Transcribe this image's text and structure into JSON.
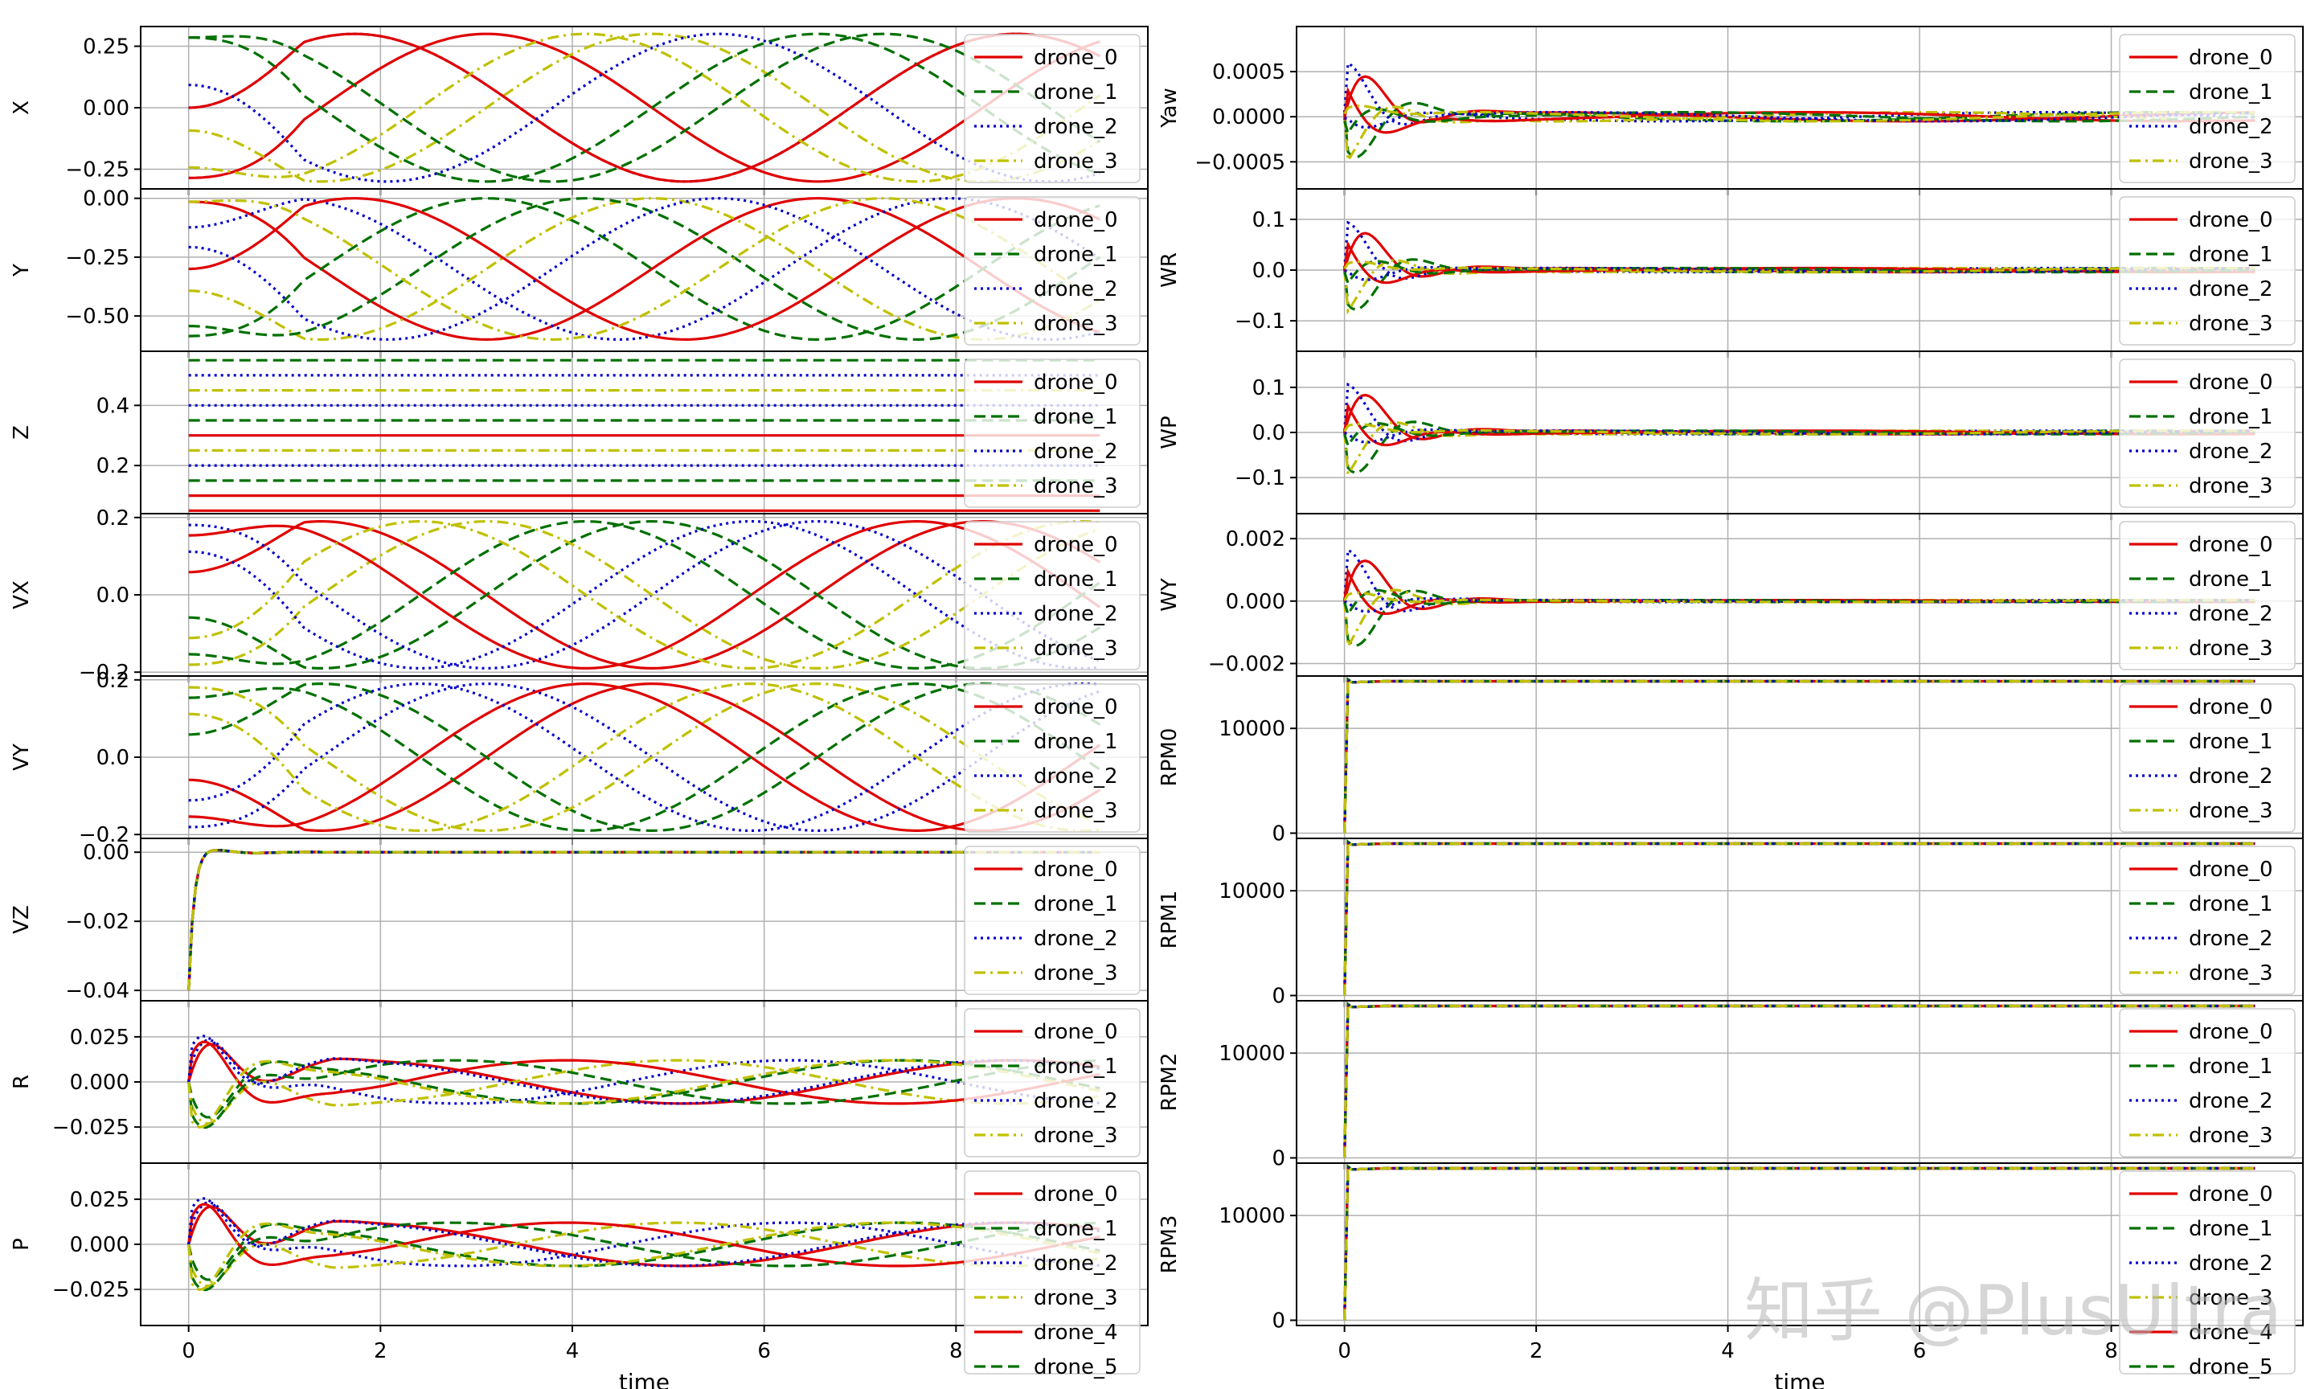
{
  "watermark": "知乎 @PlusUltra",
  "legend": [
    {
      "label": "drone_0",
      "color": "#e00000",
      "dash": "solid"
    },
    {
      "label": "drone_1",
      "color": "#007000",
      "dash": "dashed"
    },
    {
      "label": "drone_2",
      "color": "#0000cc",
      "dash": "dotted"
    },
    {
      "label": "drone_3",
      "color": "#c0c000",
      "dash": "dashdot"
    }
  ],
  "extra_legend": [
    {
      "label": "drone_4",
      "color": "#e00000",
      "dash": "solid"
    },
    {
      "label": "drone_5",
      "color": "#007000",
      "dash": "dashed"
    }
  ],
  "chart_data": [
    {
      "type": "line",
      "panel": "left-0",
      "ylabel": "X",
      "xlabel": "",
      "xlim": [
        -0.5,
        10
      ],
      "ylim": [
        -0.33,
        0.33
      ],
      "yticks": [
        0.25,
        0,
        -0.25
      ],
      "yticklabels": [
        "0.25",
        "0.00",
        "−0.25"
      ],
      "kind": "sin",
      "amp": 0.3,
      "period": 6.9,
      "phases": [
        0.8,
        0.3,
        0.0,
        0.55,
        1.0,
        0.2,
        0.45,
        0.65
      ]
    },
    {
      "type": "line",
      "panel": "left-1",
      "ylabel": "Y",
      "xlabel": "",
      "xlim": [
        -0.5,
        10
      ],
      "ylim": [
        -0.65,
        0.04
      ],
      "yticks": [
        0,
        -0.25,
        -0.5
      ],
      "yticklabels": [
        "0.00",
        "−0.25",
        "−0.50"
      ],
      "kind": "sin",
      "amp": 0.3,
      "offset": -0.3,
      "period": 6.9,
      "phases": [
        0.3,
        0.8,
        0.1,
        0.55,
        0.0,
        0.65,
        0.45,
        0.2
      ]
    },
    {
      "type": "line",
      "panel": "left-2",
      "ylabel": "Z",
      "xlabel": "",
      "xlim": [
        -0.5,
        10
      ],
      "ylim": [
        0.04,
        0.58
      ],
      "yticks": [
        0.4,
        0.2
      ],
      "yticklabels": [
        "0.4",
        "0.2"
      ],
      "kind": "const",
      "levels": [
        0.05,
        0.55,
        0.4,
        0.45,
        0.3,
        0.35,
        0.2,
        0.25,
        0.1,
        0.15,
        0.5
      ]
    },
    {
      "type": "line",
      "panel": "left-3",
      "ylabel": "VX",
      "xlabel": "",
      "xlim": [
        -0.5,
        10
      ],
      "ylim": [
        -0.21,
        0.21
      ],
      "yticks": [
        0.2,
        0,
        -0.2
      ],
      "yticklabels": [
        "0.2",
        "0.0",
        "−0.2"
      ],
      "kind": "sin",
      "amp": 0.19,
      "period": 6.9,
      "phases": [
        0.05,
        0.55,
        0.3,
        0.8,
        0.15,
        0.65,
        0.4,
        0.9
      ]
    },
    {
      "type": "line",
      "panel": "left-4",
      "ylabel": "VY",
      "xlabel": "",
      "xlim": [
        -0.5,
        10
      ],
      "ylim": [
        -0.21,
        0.21
      ],
      "yticks": [
        0.2,
        0,
        -0.2
      ],
      "yticklabels": [
        "0.2",
        "0.0",
        "−0.2"
      ],
      "kind": "sin",
      "amp": 0.19,
      "period": 6.9,
      "phases": [
        0.55,
        0.05,
        0.8,
        0.3,
        0.65,
        0.15,
        0.9,
        0.4
      ]
    },
    {
      "type": "line",
      "panel": "left-5",
      "ylabel": "VZ",
      "xlabel": "",
      "xlim": [
        -0.5,
        10
      ],
      "ylim": [
        -0.043,
        0.004
      ],
      "yticks": [
        0,
        -0.02,
        -0.04
      ],
      "yticklabels": [
        "0.00",
        "−0.02",
        "−0.04"
      ],
      "kind": "step",
      "start": -0.04,
      "end": 0.0,
      "overshoot": 0.002
    },
    {
      "type": "line",
      "panel": "left-6",
      "ylabel": "R",
      "xlabel": "",
      "xlim": [
        -0.5,
        10
      ],
      "ylim": [
        -0.045,
        0.045
      ],
      "yticks": [
        0.025,
        0,
        -0.025
      ],
      "yticklabels": [
        "0.025",
        "0.000",
        "−0.025"
      ],
      "kind": "transient",
      "amp": 0.04,
      "settle": 0.012,
      "period": 6.9
    },
    {
      "type": "line",
      "panel": "left-7",
      "ylabel": "P",
      "xlabel": "time",
      "xlim": [
        -0.5,
        10
      ],
      "ylim": [
        -0.045,
        0.045
      ],
      "yticks": [
        0.025,
        0,
        -0.025
      ],
      "yticklabels": [
        "0.025",
        "0.000",
        "−0.025"
      ],
      "kind": "transient",
      "amp": 0.04,
      "settle": 0.012,
      "period": 6.9
    },
    {
      "type": "line",
      "panel": "right-0",
      "ylabel": "Yaw",
      "xlabel": "",
      "xlim": [
        -0.5,
        10
      ],
      "ylim": [
        -0.0008,
        0.001
      ],
      "yticks": [
        0.0005,
        0,
        -0.0005
      ],
      "yticklabels": [
        "0.0005",
        "0.0000",
        "−0.0005"
      ],
      "kind": "damped",
      "amp": 0.00085,
      "tail": 5e-05
    },
    {
      "type": "line",
      "panel": "right-1",
      "ylabel": "WR",
      "xlabel": "",
      "xlim": [
        -0.5,
        10
      ],
      "ylim": [
        -0.16,
        0.16
      ],
      "yticks": [
        0.1,
        0,
        -0.1
      ],
      "yticklabels": [
        "0.1",
        "0.0",
        "−0.1"
      ],
      "kind": "damped",
      "amp": 0.14,
      "tail": 0.004
    },
    {
      "type": "line",
      "panel": "right-2",
      "ylabel": "WP",
      "xlabel": "",
      "xlim": [
        -0.5,
        10
      ],
      "ylim": [
        -0.18,
        0.18
      ],
      "yticks": [
        0.1,
        0,
        -0.1
      ],
      "yticklabels": [
        "0.1",
        "0.0",
        "−0.1"
      ],
      "kind": "damped",
      "amp": 0.16,
      "tail": 0.004
    },
    {
      "type": "line",
      "panel": "right-3",
      "ylabel": "WY",
      "xlabel": "",
      "xlim": [
        -0.5,
        10
      ],
      "ylim": [
        -0.0024,
        0.0028
      ],
      "yticks": [
        0.002,
        0,
        -0.002
      ],
      "yticklabels": [
        "0.002",
        "0.000",
        "−0.002"
      ],
      "kind": "damped",
      "amp": 0.0025,
      "tail": 3e-05
    },
    {
      "type": "line",
      "panel": "right-4",
      "ylabel": "RPM0",
      "xlabel": "",
      "xlim": [
        -0.5,
        10
      ],
      "ylim": [
        -500,
        15000
      ],
      "yticks": [
        10000,
        0
      ],
      "yticklabels": [
        "10000",
        "0"
      ],
      "kind": "rpm",
      "level": 14500
    },
    {
      "type": "line",
      "panel": "right-5",
      "ylabel": "RPM1",
      "xlabel": "",
      "xlim": [
        -0.5,
        10
      ],
      "ylim": [
        -500,
        15000
      ],
      "yticks": [
        10000,
        0
      ],
      "yticklabels": [
        "10000",
        "0"
      ],
      "kind": "rpm",
      "level": 14500
    },
    {
      "type": "line",
      "panel": "right-6",
      "ylabel": "RPM2",
      "xlabel": "",
      "xlim": [
        -0.5,
        10
      ],
      "ylim": [
        -500,
        15000
      ],
      "yticks": [
        10000,
        0
      ],
      "yticklabels": [
        "10000",
        "0"
      ],
      "kind": "rpm",
      "level": 14500
    },
    {
      "type": "line",
      "panel": "right-7",
      "ylabel": "RPM3",
      "xlabel": "time",
      "xlim": [
        -0.5,
        10
      ],
      "ylim": [
        -500,
        15000
      ],
      "yticks": [
        10000,
        0
      ],
      "yticklabels": [
        "10000",
        "0"
      ],
      "kind": "rpm",
      "level": 14500
    }
  ],
  "xticks": [
    0,
    2,
    4,
    6,
    8
  ],
  "xticklabels": [
    "0",
    "2",
    "4",
    "6",
    "8"
  ]
}
